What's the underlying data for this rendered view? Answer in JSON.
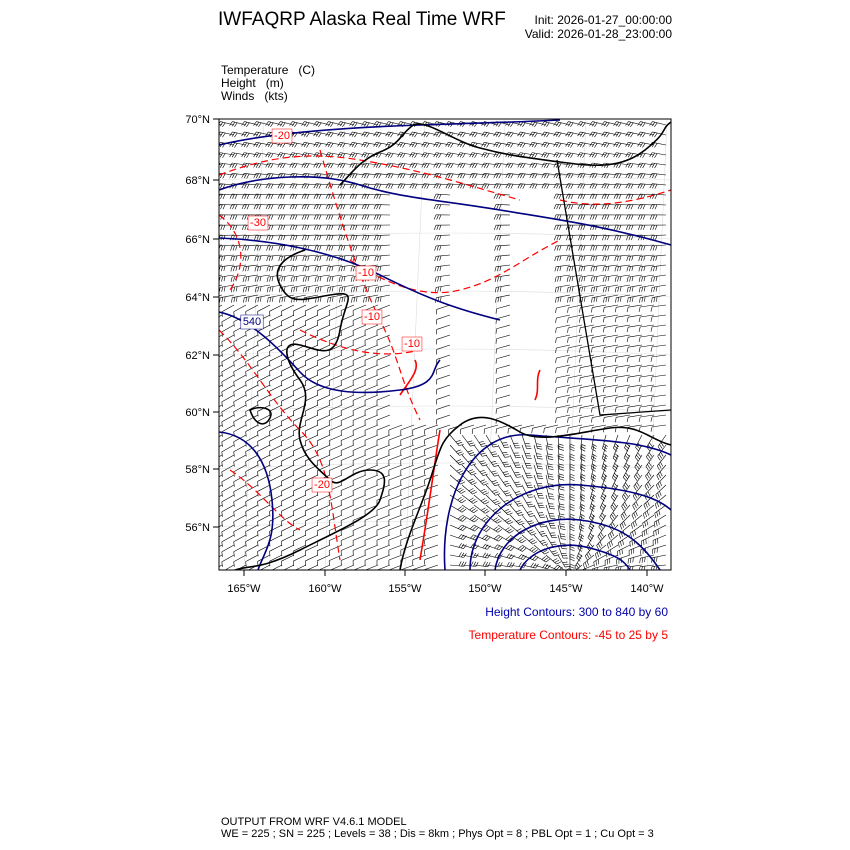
{
  "header": {
    "title": "IWFAQRP Alaska Real Time WRF",
    "init": "Init: 2026-01-27_00:00:00",
    "valid": "Valid: 2026-01-28_23:00:00"
  },
  "fields": [
    {
      "label": "Temperature",
      "unit": "(C)"
    },
    {
      "label": "Height",
      "unit": "(m)"
    },
    {
      "label": "Winds",
      "unit": "(kts)"
    }
  ],
  "map": {
    "lat_ticks": [
      "70°N",
      "68°N",
      "66°N",
      "64°N",
      "62°N",
      "60°N",
      "58°N",
      "56°N"
    ],
    "lon_ticks": [
      "165°W",
      "160°W",
      "155°W",
      "150°W",
      "145°W",
      "140°W"
    ],
    "temperature_labels": [
      "-20",
      "-30",
      "-10",
      "-10",
      "-10",
      "-20"
    ],
    "height_labels": [
      "540"
    ],
    "colors": {
      "height": "#000080",
      "temperature": "#ff0000",
      "coast": "#000000",
      "barbs": "#000000"
    }
  },
  "legend": {
    "height_contours": "Height Contours: 300 to 840 by 60",
    "temperature_contours": "Temperature Contours: -45 to 25 by 5"
  },
  "footer": {
    "line1": "OUTPUT FROM WRF V4.6.1 MODEL",
    "line2": "WE = 225 ; SN = 225 ; Levels = 38 ; Dis = 8km ; Phys Opt = 8 ; PBL Opt = 1 ; Cu Opt = 3"
  }
}
